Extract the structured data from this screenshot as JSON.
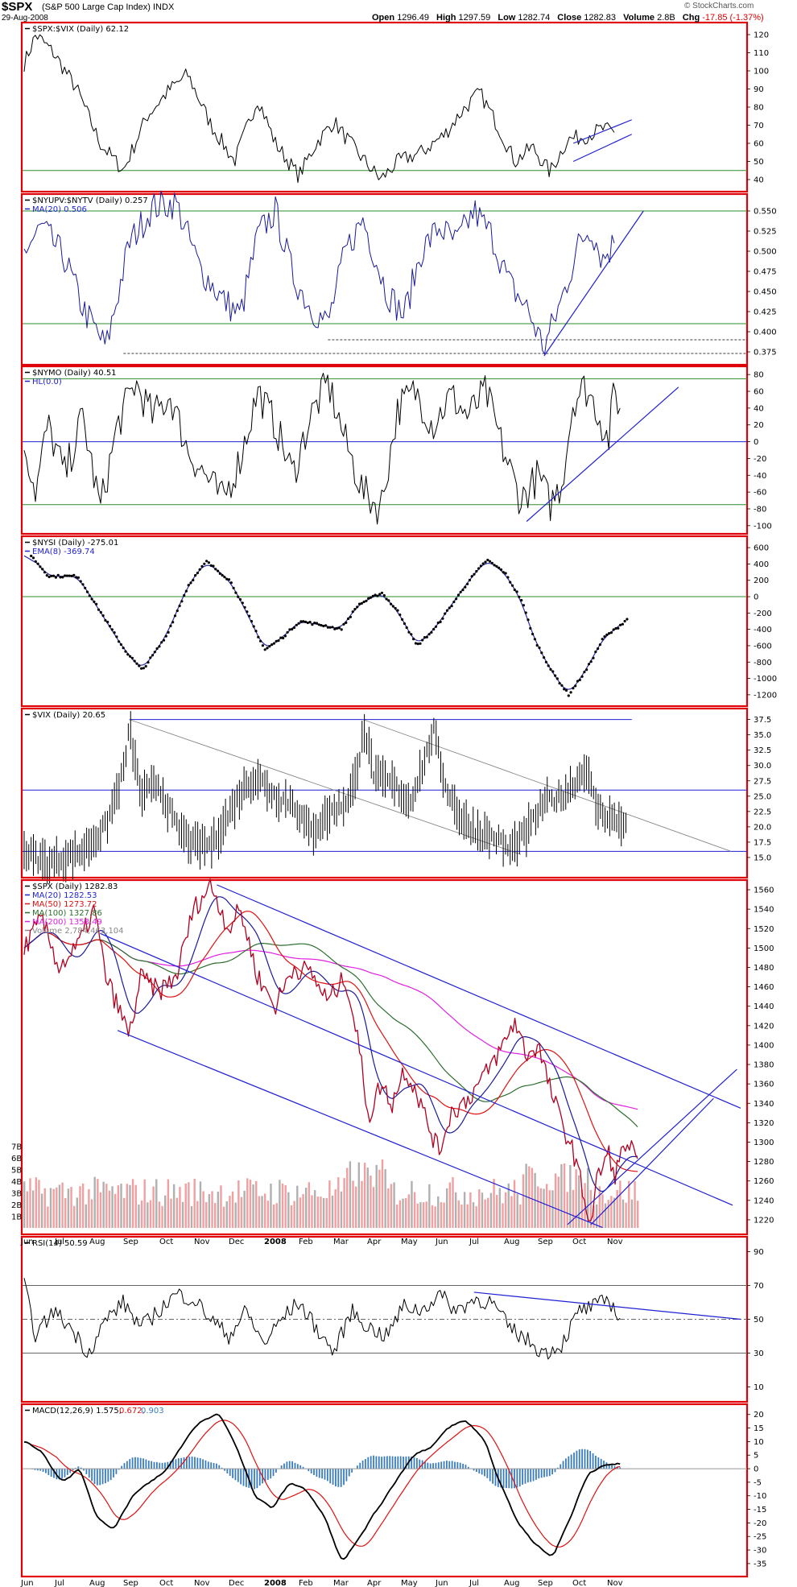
{
  "header": {
    "symbol": "$SPX",
    "name": "(S&P 500 Large Cap Index) INDX",
    "date": "29-Aug-2008",
    "copyright": "© StockCharts.com",
    "open_label": "Open",
    "open": "1296.49",
    "high_label": "High",
    "high": "1297.59",
    "low_label": "Low",
    "low": "1282.74",
    "close_label": "Close",
    "close": "1282.83",
    "volume_label": "Volume",
    "volume": "2.8B",
    "chg_label": "Chg",
    "chg": "-17.85 (-1.37%)"
  },
  "x_axis_labels": [
    "Jun",
    "Jul",
    "Aug",
    "Sep",
    "Oct",
    "Nov",
    "Dec",
    "2008",
    "Feb",
    "Mar",
    "Apr",
    "May",
    "Jun",
    "Jul",
    "Aug",
    "Sep",
    "Oct",
    "Nov"
  ],
  "colors": {
    "frame": "#e0000a",
    "black": "#000000",
    "blue": "#1f1fd6",
    "green": "#2e8b2e",
    "red": "#e01010",
    "magenta": "#e020e0",
    "darkgreen": "#2c6e2c",
    "gray": "#888888",
    "hist": "#3a7cc0",
    "volred": "#f0a0a0",
    "volgray": "#b0b0b0"
  },
  "chart_data": [
    {
      "type": "line",
      "panel": "spx_vix_ratio",
      "legend": [
        "$SPX:$VIX (Daily) 62.12"
      ],
      "yticks": [
        40,
        50,
        60,
        70,
        80,
        90,
        100,
        110,
        120
      ],
      "ylim": [
        36,
        124
      ],
      "horizontal_line": 45,
      "keypoints": [
        [
          0,
          104
        ],
        [
          2,
          120
        ],
        [
          5,
          110
        ],
        [
          9,
          90
        ],
        [
          13,
          60
        ],
        [
          17,
          45
        ],
        [
          21,
          75
        ],
        [
          25,
          90
        ],
        [
          28,
          98
        ],
        [
          32,
          70
        ],
        [
          36,
          50
        ],
        [
          40,
          85
        ],
        [
          43,
          60
        ],
        [
          47,
          42
        ],
        [
          50,
          60
        ],
        [
          53,
          72
        ],
        [
          57,
          55
        ],
        [
          61,
          40
        ],
        [
          64,
          50
        ],
        [
          68,
          55
        ],
        [
          72,
          65
        ],
        [
          75,
          78
        ],
        [
          78,
          88
        ],
        [
          81,
          70
        ],
        [
          84,
          50
        ],
        [
          87,
          58
        ],
        [
          90,
          44
        ],
        [
          93,
          62
        ],
        [
          96,
          64
        ],
        [
          99,
          68
        ],
        [
          101,
          66
        ]
      ]
    },
    {
      "type": "line",
      "panel": "nyupv_nytv",
      "legend": [
        "$NYUPV:$NYTV (Daily) 0.257",
        "MA(20) 0.506"
      ],
      "yticks": [
        0.375,
        0.4,
        0.425,
        0.45,
        0.475,
        0.5,
        0.525,
        0.55
      ],
      "ylim": [
        0.365,
        0.565
      ],
      "horizontal_lines": [
        0.55,
        0.41
      ],
      "keypoints": [
        [
          0,
          0.5
        ],
        [
          3,
          0.53
        ],
        [
          7,
          0.49
        ],
        [
          10,
          0.43
        ],
        [
          14,
          0.38
        ],
        [
          18,
          0.51
        ],
        [
          22,
          0.555
        ],
        [
          26,
          0.56
        ],
        [
          30,
          0.48
        ],
        [
          34,
          0.44
        ],
        [
          37,
          0.42
        ],
        [
          40,
          0.52
        ],
        [
          43,
          0.55
        ],
        [
          46,
          0.47
        ],
        [
          49,
          0.43
        ],
        [
          52,
          0.41
        ],
        [
          55,
          0.5
        ],
        [
          58,
          0.54
        ],
        [
          62,
          0.45
        ],
        [
          65,
          0.42
        ],
        [
          68,
          0.5
        ],
        [
          71,
          0.53
        ],
        [
          74,
          0.51
        ],
        [
          77,
          0.55
        ],
        [
          80,
          0.52
        ],
        [
          83,
          0.46
        ],
        [
          86,
          0.43
        ],
        [
          89,
          0.38
        ],
        [
          92,
          0.44
        ],
        [
          95,
          0.51
        ],
        [
          97,
          0.53
        ],
        [
          99,
          0.49
        ],
        [
          101,
          0.51
        ]
      ]
    },
    {
      "type": "line",
      "panel": "nymo",
      "legend": [
        "$NYMO (Daily) 40.51",
        "HL(0.0)"
      ],
      "yticks": [
        -100,
        -80,
        -60,
        -40,
        -20,
        0,
        20,
        40,
        60,
        80
      ],
      "ylim": [
        -104,
        84
      ],
      "horizontal_lines": [
        75,
        0,
        -75
      ],
      "keypoints": [
        [
          0,
          0
        ],
        [
          2,
          -60
        ],
        [
          4,
          20
        ],
        [
          7,
          -40
        ],
        [
          10,
          30
        ],
        [
          13,
          -80
        ],
        [
          16,
          20
        ],
        [
          19,
          70
        ],
        [
          22,
          30
        ],
        [
          25,
          55
        ],
        [
          28,
          -10
        ],
        [
          31,
          -40
        ],
        [
          34,
          -70
        ],
        [
          37,
          -20
        ],
        [
          40,
          60
        ],
        [
          43,
          20
        ],
        [
          46,
          -40
        ],
        [
          49,
          30
        ],
        [
          52,
          70
        ],
        [
          55,
          0
        ],
        [
          58,
          -60
        ],
        [
          61,
          -80
        ],
        [
          64,
          40
        ],
        [
          67,
          60
        ],
        [
          70,
          20
        ],
        [
          73,
          55
        ],
        [
          76,
          30
        ],
        [
          79,
          60
        ],
        [
          82,
          -10
        ],
        [
          85,
          -70
        ],
        [
          88,
          -40
        ],
        [
          90,
          -75
        ],
        [
          92,
          -50
        ],
        [
          94,
          50
        ],
        [
          96,
          65
        ],
        [
          98,
          40
        ],
        [
          100,
          0
        ],
        [
          101,
          62
        ],
        [
          102,
          40
        ]
      ]
    },
    {
      "type": "line",
      "panel": "nysi",
      "legend": [
        "$NYSI (Daily) -275.01",
        "EMA(8) -369.74"
      ],
      "yticks": [
        -1200,
        -1000,
        -800,
        -600,
        -400,
        -200,
        0,
        200,
        400,
        600
      ],
      "ylim": [
        -1280,
        680
      ],
      "horizontal_line": 0,
      "keypoints": [
        [
          0,
          500
        ],
        [
          3,
          250
        ],
        [
          8,
          250
        ],
        [
          12,
          -200
        ],
        [
          16,
          -650
        ],
        [
          19,
          -900
        ],
        [
          23,
          -500
        ],
        [
          27,
          150
        ],
        [
          30,
          430
        ],
        [
          34,
          200
        ],
        [
          37,
          -200
        ],
        [
          40,
          -650
        ],
        [
          43,
          -500
        ],
        [
          46,
          -300
        ],
        [
          50,
          -350
        ],
        [
          53,
          -400
        ],
        [
          56,
          -100
        ],
        [
          60,
          50
        ],
        [
          63,
          -200
        ],
        [
          66,
          -600
        ],
        [
          69,
          -400
        ],
        [
          72,
          -100
        ],
        [
          75,
          200
        ],
        [
          78,
          450
        ],
        [
          81,
          300
        ],
        [
          84,
          -50
        ],
        [
          86,
          -500
        ],
        [
          89,
          -900
        ],
        [
          92,
          -1200
        ],
        [
          95,
          -900
        ],
        [
          98,
          -500
        ],
        [
          100,
          -400
        ],
        [
          102,
          -275
        ]
      ]
    },
    {
      "type": "line",
      "panel": "vix",
      "legend": [
        "$VIX (Daily) 20.65"
      ],
      "yticks": [
        15,
        17.5,
        20,
        22.5,
        25,
        27.5,
        30,
        32.5,
        35,
        37.5
      ],
      "ylim": [
        12.5,
        38.5
      ],
      "horizontal_lines": [
        37.5,
        26,
        16
      ],
      "keypoints": [
        [
          0,
          16
        ],
        [
          2,
          15
        ],
        [
          4,
          14
        ],
        [
          7,
          15
        ],
        [
          10,
          16
        ],
        [
          14,
          20
        ],
        [
          17,
          29
        ],
        [
          18,
          36
        ],
        [
          20,
          25
        ],
        [
          23,
          27
        ],
        [
          26,
          20
        ],
        [
          29,
          17
        ],
        [
          32,
          17
        ],
        [
          35,
          22
        ],
        [
          38,
          27
        ],
        [
          40,
          28
        ],
        [
          43,
          25
        ],
        [
          46,
          24
        ],
        [
          49,
          19
        ],
        [
          52,
          22
        ],
        [
          55,
          24
        ],
        [
          57,
          28
        ],
        [
          58,
          37
        ],
        [
          60,
          28
        ],
        [
          63,
          27
        ],
        [
          66,
          24
        ],
        [
          69,
          32
        ],
        [
          70,
          36
        ],
        [
          72,
          27
        ],
        [
          75,
          21
        ],
        [
          78,
          19
        ],
        [
          81,
          18
        ],
        [
          83,
          16
        ],
        [
          86,
          19
        ],
        [
          89,
          24
        ],
        [
          92,
          25
        ],
        [
          95,
          28
        ],
        [
          96,
          30
        ],
        [
          98,
          23
        ],
        [
          101,
          21
        ],
        [
          103,
          20.65
        ]
      ]
    },
    {
      "type": "line",
      "panel": "spx_price",
      "legend": [
        "$SPX (Daily) 1282.83",
        "MA(20) 1282.53",
        "MA(50) 1273.72",
        "MA(100) 1327.86",
        "MA(200) 1358.49",
        "Volume 2,784,463,104"
      ],
      "yticks": [
        1220,
        1240,
        1260,
        1280,
        1300,
        1320,
        1340,
        1360,
        1380,
        1400,
        1420,
        1440,
        1460,
        1480,
        1500,
        1520,
        1540,
        1560
      ],
      "ylim": [
        1210,
        1565
      ],
      "volume_yticks": [
        "1B",
        "2B",
        "3B",
        "4B",
        "5B",
        "6B",
        "7B"
      ],
      "keypoints": [
        [
          0,
          1500
        ],
        [
          3,
          1530
        ],
        [
          6,
          1480
        ],
        [
          9,
          1500
        ],
        [
          12,
          1540
        ],
        [
          14,
          1470
        ],
        [
          16,
          1440
        ],
        [
          18,
          1410
        ],
        [
          20,
          1470
        ],
        [
          23,
          1455
        ],
        [
          26,
          1470
        ],
        [
          29,
          1540
        ],
        [
          32,
          1565
        ],
        [
          35,
          1520
        ],
        [
          37,
          1540
        ],
        [
          40,
          1470
        ],
        [
          43,
          1440
        ],
        [
          46,
          1480
        ],
        [
          49,
          1475
        ],
        [
          52,
          1445
        ],
        [
          55,
          1470
        ],
        [
          57,
          1410
        ],
        [
          59,
          1325
        ],
        [
          61,
          1360
        ],
        [
          63,
          1340
        ],
        [
          65,
          1375
        ],
        [
          67,
          1355
        ],
        [
          69,
          1320
        ],
        [
          71,
          1290
        ],
        [
          73,
          1330
        ],
        [
          76,
          1345
        ],
        [
          79,
          1370
        ],
        [
          82,
          1400
        ],
        [
          84,
          1425
        ],
        [
          86,
          1390
        ],
        [
          88,
          1400
        ],
        [
          90,
          1355
        ],
        [
          92,
          1320
        ],
        [
          94,
          1290
        ],
        [
          96,
          1240
        ],
        [
          97,
          1215
        ],
        [
          98,
          1260
        ],
        [
          100,
          1290
        ],
        [
          101,
          1265
        ],
        [
          103,
          1300
        ],
        [
          105,
          1283
        ]
      ]
    },
    {
      "type": "line",
      "panel": "rsi",
      "legend": [
        "RSI(14) 50.59"
      ],
      "yticks": [
        10,
        30,
        50,
        70,
        90
      ],
      "ylim": [
        4,
        96
      ],
      "horizontal_lines": [
        70,
        50,
        30
      ],
      "keypoints": [
        [
          0,
          70
        ],
        [
          2,
          40
        ],
        [
          5,
          55
        ],
        [
          8,
          45
        ],
        [
          11,
          30
        ],
        [
          14,
          50
        ],
        [
          17,
          60
        ],
        [
          20,
          45
        ],
        [
          23,
          55
        ],
        [
          26,
          65
        ],
        [
          29,
          62
        ],
        [
          32,
          50
        ],
        [
          35,
          40
        ],
        [
          38,
          55
        ],
        [
          41,
          35
        ],
        [
          44,
          50
        ],
        [
          47,
          60
        ],
        [
          50,
          45
        ],
        [
          53,
          30
        ],
        [
          56,
          55
        ],
        [
          59,
          45
        ],
        [
          62,
          40
        ],
        [
          65,
          58
        ],
        [
          68,
          55
        ],
        [
          71,
          65
        ],
        [
          74,
          55
        ],
        [
          77,
          62
        ],
        [
          80,
          60
        ],
        [
          83,
          45
        ],
        [
          86,
          38
        ],
        [
          89,
          30
        ],
        [
          92,
          35
        ],
        [
          95,
          55
        ],
        [
          98,
          58
        ],
        [
          100,
          62
        ],
        [
          102,
          50.59
        ]
      ]
    },
    {
      "type": "line",
      "panel": "macd",
      "legend": [
        "MACD(12,26,9) 1.575,",
        "0.672,",
        "0.903"
      ],
      "yticks": [
        -35,
        -30,
        -25,
        -20,
        -15,
        -10,
        -5,
        0,
        5,
        10,
        15,
        20
      ],
      "ylim": [
        -38,
        22
      ],
      "keypoints": [
        [
          0,
          10
        ],
        [
          3,
          5
        ],
        [
          6,
          -5
        ],
        [
          9,
          0
        ],
        [
          12,
          -18
        ],
        [
          15,
          -22
        ],
        [
          18,
          -10
        ],
        [
          21,
          -5
        ],
        [
          24,
          0
        ],
        [
          27,
          10
        ],
        [
          30,
          18
        ],
        [
          33,
          20
        ],
        [
          36,
          8
        ],
        [
          39,
          -10
        ],
        [
          42,
          -15
        ],
        [
          45,
          -5
        ],
        [
          48,
          -8
        ],
        [
          51,
          -18
        ],
        [
          54,
          -35
        ],
        [
          57,
          -25
        ],
        [
          60,
          -15
        ],
        [
          63,
          -5
        ],
        [
          66,
          5
        ],
        [
          69,
          8
        ],
        [
          72,
          15
        ],
        [
          75,
          18
        ],
        [
          78,
          12
        ],
        [
          81,
          -5
        ],
        [
          84,
          -20
        ],
        [
          87,
          -28
        ],
        [
          90,
          -33
        ],
        [
          93,
          -18
        ],
        [
          96,
          -2
        ],
        [
          99,
          1.5
        ],
        [
          102,
          1.575
        ]
      ]
    }
  ]
}
